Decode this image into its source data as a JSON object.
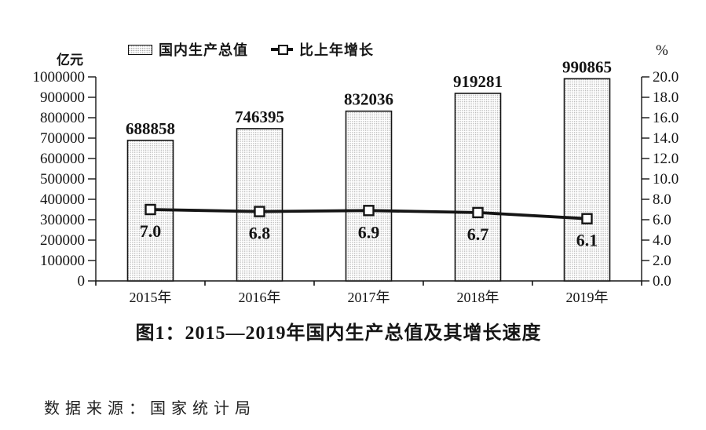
{
  "legend": {
    "gdp_label": "国内生产总值",
    "growth_label": "比上年增长"
  },
  "axes_units": {
    "left_unit": "亿元",
    "right_unit": "%"
  },
  "title": "图1：2015—2019年国内生产总值及其增长速度",
  "source": "数据来源：国家统计局",
  "colors": {
    "ink": "#151515",
    "bar_dot": "#999999",
    "bar_bg": "#fefefe",
    "marker_fill": "#ffffff"
  },
  "chart_data": {
    "type": "bar",
    "categories": [
      "2015年",
      "2016年",
      "2017年",
      "2018年",
      "2019年"
    ],
    "series": [
      {
        "name": "国内生产总值",
        "type": "bar",
        "axis": "left",
        "values": [
          688858,
          746395,
          832036,
          919281,
          990865
        ]
      },
      {
        "name": "比上年增长",
        "type": "line",
        "axis": "right",
        "values": [
          7.0,
          6.8,
          6.9,
          6.7,
          6.1
        ],
        "decimals": 1
      }
    ],
    "left_axis": {
      "label": "亿元",
      "min": 0,
      "max": 1000000,
      "step": 100000
    },
    "right_axis": {
      "label": "%",
      "min": 0,
      "max": 20,
      "step": 2,
      "decimals": 1
    },
    "title": "图1：2015—2019年国内生产总值及其增长速度",
    "legend_position": "top",
    "grid": false
  }
}
